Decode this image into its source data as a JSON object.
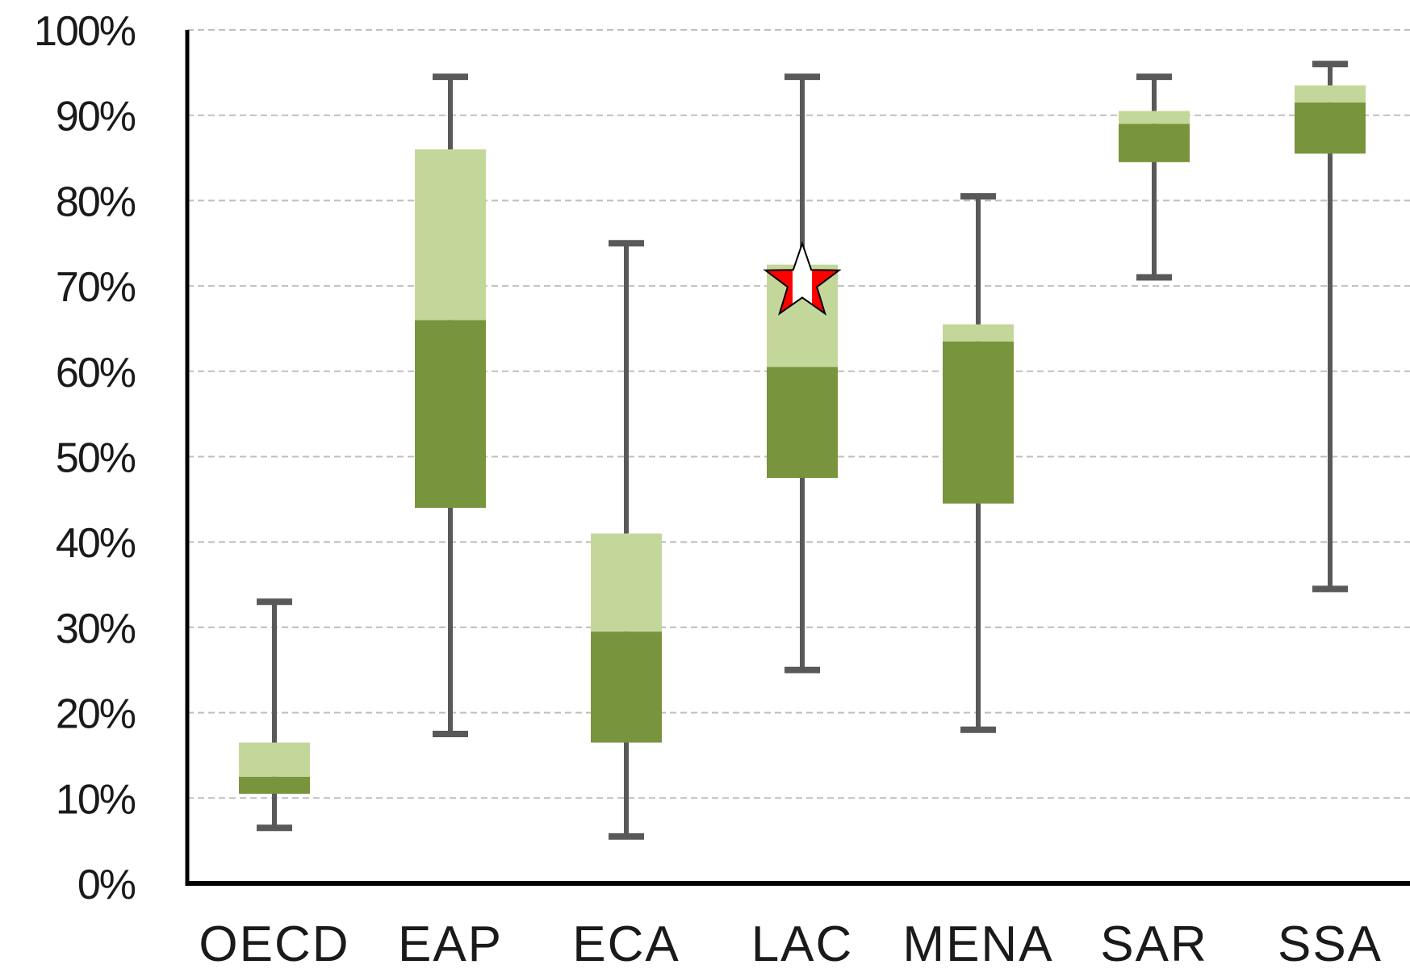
{
  "chart_data": {
    "type": "box",
    "categories": [
      "OECD",
      "EAP",
      "ECA",
      "LAC",
      "MENA",
      "SAR",
      "SSA"
    ],
    "y_ticks": [
      "0%",
      "10%",
      "20%",
      "30%",
      "40%",
      "50%",
      "60%",
      "70%",
      "80%",
      "90%",
      "100%"
    ],
    "ylim": [
      0,
      100
    ],
    "grid": true,
    "boxes": [
      {
        "category": "OECD",
        "min": 6.5,
        "q1": 10.5,
        "median": 12.5,
        "q3": 16.5,
        "max": 33
      },
      {
        "category": "EAP",
        "min": 17.5,
        "q1": 44,
        "median": 66,
        "q3": 86,
        "max": 94.5
      },
      {
        "category": "ECA",
        "min": 5.5,
        "q1": 16.5,
        "median": 29.5,
        "q3": 41,
        "max": 75
      },
      {
        "category": "LAC",
        "min": 25,
        "q1": 47.5,
        "median": 60.5,
        "q3": 72.5,
        "max": 94.5
      },
      {
        "category": "MENA",
        "min": 18,
        "q1": 44.5,
        "median": 63.5,
        "q3": 65.5,
        "max": 80.5
      },
      {
        "category": "SAR",
        "min": 71,
        "q1": 84.5,
        "median": 89,
        "q3": 90.5,
        "max": 94.5
      },
      {
        "category": "SSA",
        "min": 34.5,
        "q1": 85.5,
        "median": 91.5,
        "q3": 93.5,
        "max": 96
      }
    ],
    "marker": {
      "category": "LAC",
      "value": 71,
      "shape": "star"
    },
    "colors": {
      "lower_box": "#78943c",
      "upper_box": "#c4d79b",
      "whisker": "#595959",
      "gridline": "#bfbfbf",
      "axis": "#000000",
      "marker_fill": "#ff0000",
      "marker_stripe": "#ffffff"
    }
  }
}
